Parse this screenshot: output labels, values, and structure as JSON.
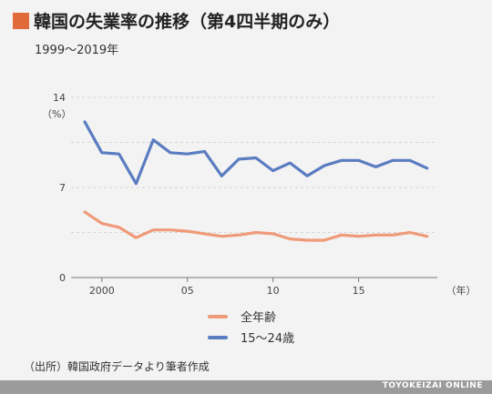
{
  "header": {
    "title": "韓国の失業率の推移（第4四半期のみ）",
    "subtitle": "1999～2019年"
  },
  "colors": {
    "accent": "#e06a3a",
    "all_ages": "#ef9a79",
    "youth": "#5a7cc1"
  },
  "chart_data": {
    "type": "line",
    "x": [
      1999,
      2000,
      2001,
      2002,
      2003,
      2004,
      2005,
      2006,
      2007,
      2008,
      2009,
      2010,
      2011,
      2012,
      2013,
      2014,
      2015,
      2016,
      2017,
      2018,
      2019
    ],
    "series": [
      {
        "name": "全年齢",
        "values": [
          5.1,
          4.2,
          3.9,
          3.1,
          3.7,
          3.7,
          3.6,
          3.4,
          3.2,
          3.3,
          3.5,
          3.4,
          3.0,
          2.9,
          2.9,
          3.3,
          3.2,
          3.3,
          3.3,
          3.5,
          3.2
        ]
      },
      {
        "name": "15～24歳",
        "values": [
          12.1,
          9.7,
          9.6,
          7.3,
          10.7,
          9.7,
          9.6,
          9.8,
          7.9,
          9.2,
          9.3,
          8.3,
          8.9,
          7.9,
          8.7,
          9.1,
          9.1,
          8.6,
          9.1,
          9.1,
          8.5
        ]
      }
    ],
    "ylim": [
      0,
      14
    ],
    "yticks": [
      0,
      7,
      14
    ],
    "ylabel": "（%）",
    "xticks": [
      {
        "x": 2000,
        "label": "2000"
      },
      {
        "x": 2005,
        "label": "05"
      },
      {
        "x": 2010,
        "label": "10"
      },
      {
        "x": 2015,
        "label": "15"
      }
    ],
    "xlabel": "（年）",
    "grid": true,
    "legend_position": "bottom-center"
  },
  "legend": [
    {
      "label": "全年齢"
    },
    {
      "label": "15～24歳"
    }
  ],
  "footer": {
    "source": "（出所）韓国政府データより筆者作成",
    "brand": "TOYOKEIZAI ONLINE"
  }
}
